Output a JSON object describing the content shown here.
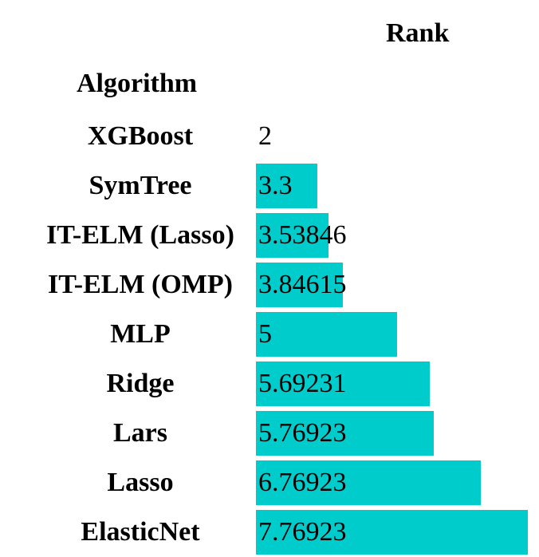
{
  "chart_data": {
    "type": "table",
    "column_header": "Rank",
    "index_header": "Algorithm",
    "bar_color": "#00cccc",
    "rows": [
      {
        "algorithm": "XGBoost",
        "rank": 2,
        "rank_label": "2"
      },
      {
        "algorithm": "SymTree",
        "rank": 3.3,
        "rank_label": "3.3"
      },
      {
        "algorithm": "IT-ELM (Lasso)",
        "rank": 3.53846,
        "rank_label": "3.53846"
      },
      {
        "algorithm": "IT-ELM (OMP)",
        "rank": 3.84615,
        "rank_label": "3.84615"
      },
      {
        "algorithm": "MLP",
        "rank": 5,
        "rank_label": "5"
      },
      {
        "algorithm": "Ridge",
        "rank": 5.69231,
        "rank_label": "5.69231"
      },
      {
        "algorithm": "Lars",
        "rank": 5.76923,
        "rank_label": "5.76923"
      },
      {
        "algorithm": "Lasso",
        "rank": 6.76923,
        "rank_label": "6.76923"
      },
      {
        "algorithm": "ElasticNet",
        "rank": 7.76923,
        "rank_label": "7.76923"
      }
    ],
    "bar_min": 2,
    "bar_max": 7.76923
  }
}
